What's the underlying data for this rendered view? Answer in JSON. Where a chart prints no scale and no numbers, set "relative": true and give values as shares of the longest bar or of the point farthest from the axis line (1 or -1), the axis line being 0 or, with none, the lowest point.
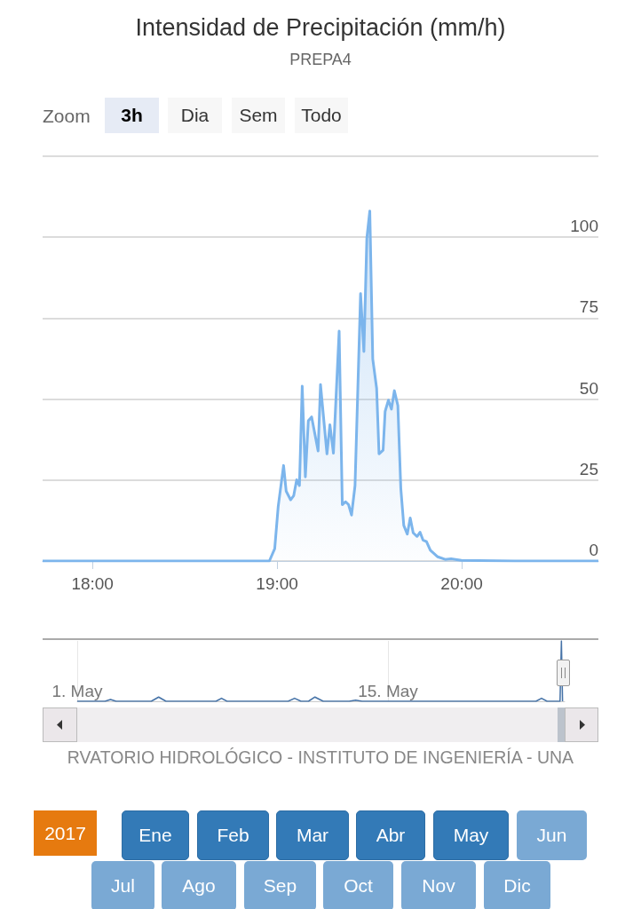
{
  "chart_data": [
    {
      "type": "area",
      "title": "Intensidad de Precipitación (mm/h)",
      "subtitle": "PREPA4",
      "color": "#7cb5ec",
      "x": [
        17.73,
        18.958,
        18.987,
        19.006,
        19.035,
        19.049,
        19.073,
        19.09,
        19.106,
        19.121,
        19.136,
        19.153,
        19.169,
        19.187,
        19.222,
        19.235,
        19.27,
        19.286,
        19.305,
        19.336,
        19.353,
        19.371,
        19.387,
        19.403,
        19.422,
        19.452,
        19.47,
        19.486,
        19.502,
        19.518,
        19.539,
        19.552,
        19.574,
        19.585,
        19.603,
        19.619,
        19.635,
        19.654,
        19.67,
        19.686,
        19.705,
        19.721,
        19.737,
        19.758,
        19.774,
        19.79,
        19.809,
        19.83,
        19.87,
        19.91,
        19.942,
        19.998,
        20.285,
        20.74
      ],
      "values": [
        0,
        0,
        3.8,
        16.9,
        29.5,
        21.6,
        18.9,
        20.2,
        25.1,
        23.3,
        54.0,
        26.0,
        43.3,
        44.5,
        34.0,
        54.5,
        33.1,
        42.1,
        33.3,
        71.0,
        17.4,
        18.3,
        17.4,
        14.2,
        23.3,
        82.6,
        64.7,
        99.7,
        108.1,
        62.4,
        53.3,
        33.1,
        34.2,
        46.2,
        49.7,
        46.9,
        52.6,
        48.0,
        22.4,
        11.0,
        8.3,
        13.3,
        8.7,
        7.6,
        8.9,
        6.5,
        6.0,
        3.3,
        1.3,
        0.5,
        0.7,
        0.2,
        0,
        0
      ],
      "xlim": [
        17.73,
        20.74
      ],
      "xticks": [
        {
          "value": 18,
          "label": "18:00"
        },
        {
          "value": 19,
          "label": "19:00"
        },
        {
          "value": 20,
          "label": "20:00"
        }
      ],
      "ylim": [
        0,
        125
      ],
      "yticks": [
        0,
        25,
        50,
        75,
        100
      ],
      "grid": "y",
      "marker": "none",
      "line_style": "solid",
      "annotations": [
        "Zoom",
        "3h",
        "Dia",
        "Sem",
        "Todo",
        "RVATORIO HIDROLÓGICO - INSTITUTO DE INGENIERÍA - UNA",
        "2017",
        "Ene",
        "Feb",
        "Mar",
        "Abr",
        "May",
        "Jun",
        "Jul",
        "Ago",
        "Sep",
        "Oct",
        "Nov",
        "Dic"
      ]
    },
    {
      "type": "line",
      "relative": true,
      "color": "#4572a7",
      "x": [
        "2017-05-01T00:00",
        "2017-05-02T06:00",
        "2017-05-02T12:00",
        "2017-05-02T18:00",
        "2017-05-04T08:00",
        "2017-05-04T16:00",
        "2017-05-05T00:00",
        "2017-05-07T06:00",
        "2017-05-07T12:00",
        "2017-05-07T18:00",
        "2017-05-10T12:00",
        "2017-05-10T19:00",
        "2017-05-11T02:00",
        "2017-05-11T10:00",
        "2017-05-11T17:00",
        "2017-05-12T02:00",
        "2017-05-13T06:00",
        "2017-05-13T13:00",
        "2017-05-13T20:00",
        "2017-05-21T16:00",
        "2017-05-21T22:00",
        "2017-05-22T04:00",
        "2017-05-22T18:00",
        "2017-05-22T19:30",
        "2017-05-22T20:44"
      ],
      "values": [
        0,
        0,
        0.03,
        0,
        0,
        0.07,
        0,
        0,
        0.05,
        0,
        0,
        0.05,
        0,
        0,
        0.07,
        0,
        0,
        0.02,
        0,
        0,
        0.05,
        0,
        0,
        1,
        0
      ],
      "xlim": [
        "2017-05-01T00:00",
        "2017-05-22T23:00"
      ],
      "xticks": [
        {
          "value": "2017-05-01T00:00",
          "label": "1. May"
        },
        {
          "value": "2017-05-15T00:00",
          "label": "15. May"
        }
      ],
      "grid": "x",
      "marker": "none"
    }
  ]
}
